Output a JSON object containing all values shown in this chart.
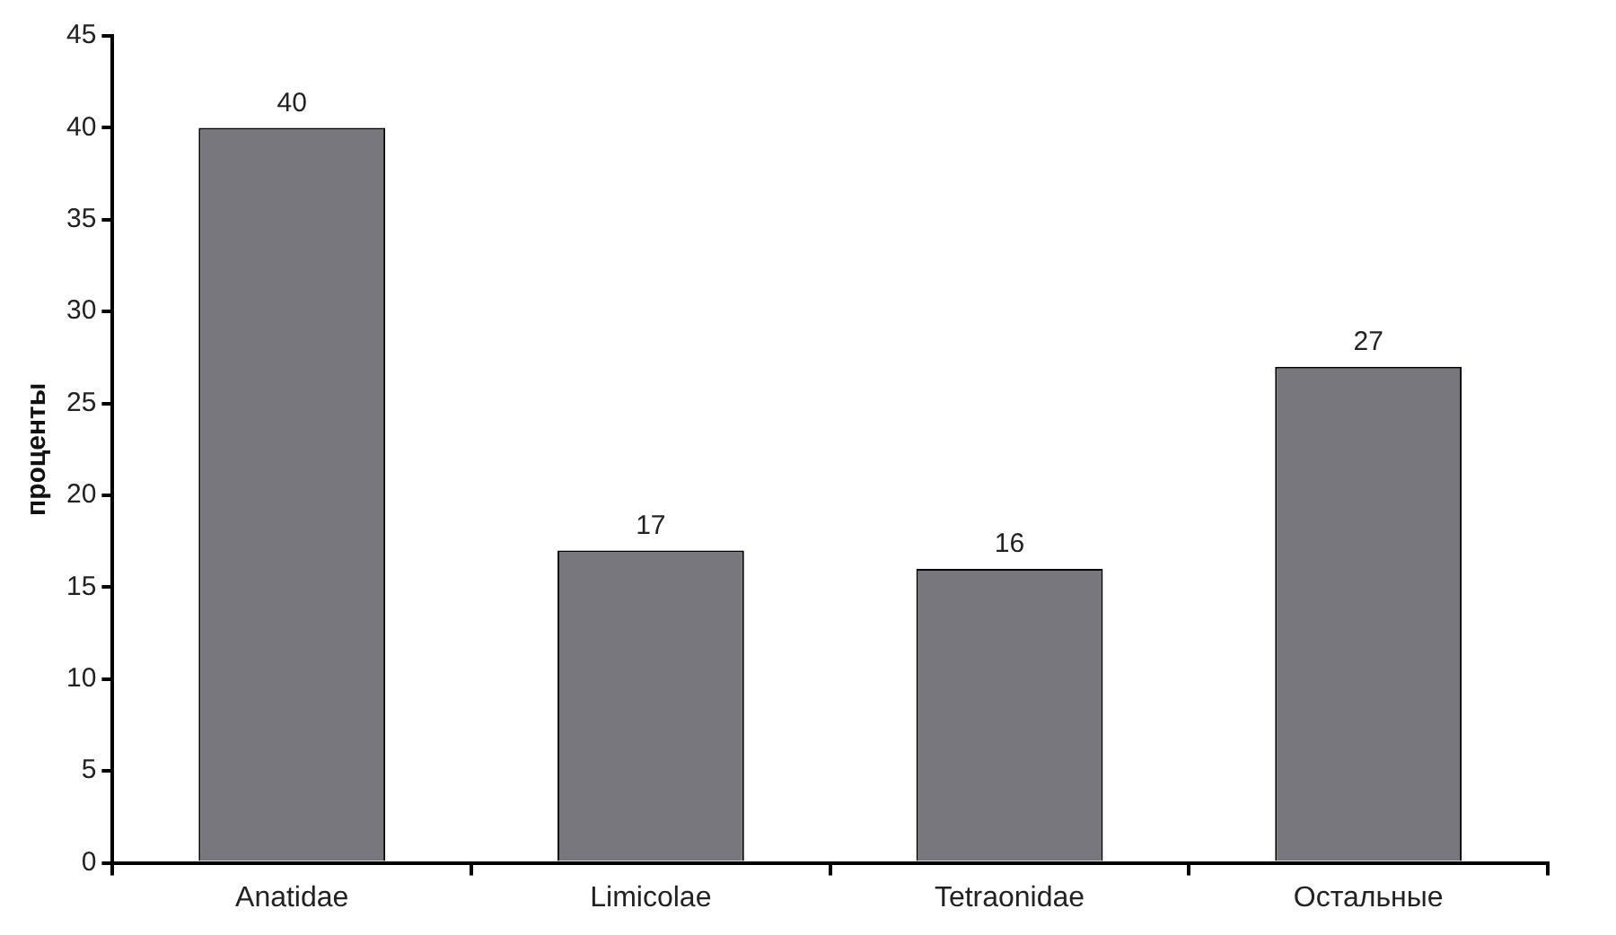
{
  "chart_data": {
    "type": "bar",
    "ylabel": "проценты",
    "categories": [
      "Anatidae",
      "Limicolae",
      "Tetraonidae",
      "Остальные"
    ],
    "values": [
      40,
      17,
      16,
      27
    ],
    "color": "#77777d",
    "ylim": [
      0,
      45
    ],
    "yticks": [
      0,
      5,
      10,
      15,
      20,
      25,
      30,
      35,
      40,
      45
    ],
    "grid": false,
    "legend": false,
    "data_labels": true
  }
}
